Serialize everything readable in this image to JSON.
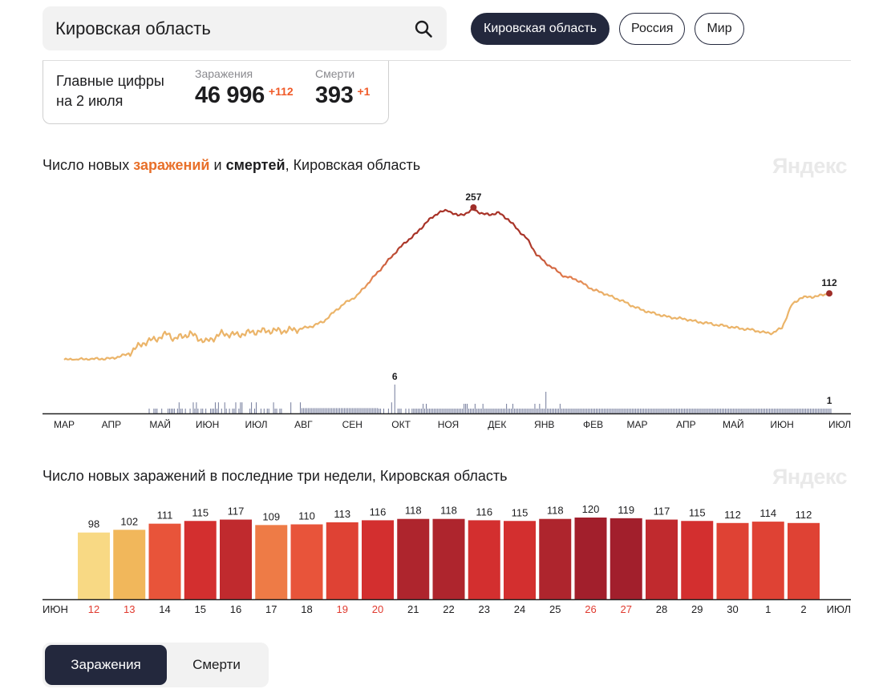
{
  "search": {
    "value": "Кировская область"
  },
  "regions": [
    {
      "label": "Кировская область",
      "active": true
    },
    {
      "label": "Россия",
      "active": false
    },
    {
      "label": "Мир",
      "active": false
    }
  ],
  "summary": {
    "title_line1": "Главные цифры",
    "title_line2": "на 2 июля",
    "infections": {
      "label": "Заражения",
      "value": "46 996",
      "delta": "+112"
    },
    "deaths": {
      "label": "Смерти",
      "value": "393",
      "delta": "+1"
    }
  },
  "chart1_title": {
    "prefix": "Число новых ",
    "infections_word": "заражений",
    "middle": " и ",
    "deaths_word": "смертей",
    "suffix": ", Кировская область"
  },
  "chart2_title": "Число новых заражений в последние три недели, Кировская область",
  "watermark": "Яндекс",
  "tabs": [
    {
      "label": "Заражения",
      "active": true
    },
    {
      "label": "Смерти",
      "active": false
    }
  ],
  "colors": {
    "accent_dark": "#23283d",
    "orange": "#e8702a",
    "line_low": "#ebb469",
    "line_mid": "#e0784b",
    "line_high": "#a83328",
    "marker": "#9f2e29",
    "death_bars": "#737b9b",
    "holiday_red": "#e03a2f"
  },
  "chart_data": [
    {
      "type": "line",
      "title": "Число новых заражений и смертей, Кировская область",
      "x_labels": [
        "МАР",
        "АПР",
        "МАЙ",
        "ИЮН",
        "ИЮЛ",
        "АВГ",
        "СЕН",
        "ОКТ",
        "НОЯ",
        "ДЕК",
        "ЯНВ",
        "ФЕВ",
        "МАР",
        "АПР",
        "МАЙ",
        "ИЮН",
        "ИЮЛ"
      ],
      "x_range_days": [
        0,
        487
      ],
      "series": [
        {
          "name": "Заражения",
          "points": [
            [
              0,
              0
            ],
            [
              30,
              2
            ],
            [
              40,
              9
            ],
            [
              50,
              28
            ],
            [
              60,
              37
            ],
            [
              66,
              44
            ],
            [
              70,
              35
            ],
            [
              80,
              44
            ],
            [
              90,
              30
            ],
            [
              100,
              44
            ],
            [
              110,
              42
            ],
            [
              120,
              47
            ],
            [
              130,
              49
            ],
            [
              140,
              49
            ],
            [
              150,
              52
            ],
            [
              158,
              57
            ],
            [
              165,
              65
            ],
            [
              172,
              82
            ],
            [
              178,
              95
            ],
            [
              186,
              108
            ],
            [
              192,
              126
            ],
            [
              198,
              144
            ],
            [
              205,
              165
            ],
            [
              212,
              186
            ],
            [
              218,
              201
            ],
            [
              224,
              214
            ],
            [
              230,
              232
            ],
            [
              238,
              249
            ],
            [
              244,
              252
            ],
            [
              250,
              243
            ],
            [
              256,
              248
            ],
            [
              260,
              254
            ],
            [
              266,
              246
            ],
            [
              270,
              245
            ],
            [
              276,
              248
            ],
            [
              282,
              237
            ],
            [
              288,
              220
            ],
            [
              294,
              204
            ],
            [
              300,
              178
            ],
            [
              306,
              163
            ],
            [
              312,
              152
            ],
            [
              318,
              140
            ],
            [
              324,
              137
            ],
            [
              330,
              128
            ],
            [
              336,
              118
            ],
            [
              342,
              113
            ],
            [
              348,
              106
            ],
            [
              354,
              100
            ],
            [
              360,
              92
            ],
            [
              366,
              85
            ],
            [
              372,
              80
            ],
            [
              378,
              76
            ],
            [
              384,
              72
            ],
            [
              390,
              70
            ],
            [
              396,
              68
            ],
            [
              402,
              64
            ],
            [
              408,
              62
            ],
            [
              414,
              59
            ],
            [
              420,
              57
            ],
            [
              426,
              54
            ],
            [
              432,
              52
            ],
            [
              438,
              50
            ],
            [
              444,
              46
            ],
            [
              450,
              45
            ],
            [
              456,
              54
            ],
            [
              462,
              92
            ],
            [
              468,
              105
            ],
            [
              474,
              106
            ],
            [
              480,
              108
            ],
            [
              486,
              112
            ]
          ],
          "labels": [
            {
              "day": 260,
              "value": 257
            },
            {
              "day": 486,
              "value": 112
            }
          ]
        },
        {
          "name": "Смерти",
          "y_max": 6,
          "labels": [
            {
              "day": 210,
              "value": 6
            },
            {
              "day": 486,
              "value": 1
            }
          ]
        }
      ]
    },
    {
      "type": "bar",
      "title": "Число новых заражений в последние три недели, Кировская область",
      "start_label": "ИЮН",
      "end_label": "ИЮЛ",
      "categories": [
        "12",
        "13",
        "14",
        "15",
        "16",
        "17",
        "18",
        "19",
        "20",
        "21",
        "22",
        "23",
        "24",
        "25",
        "26",
        "27",
        "28",
        "29",
        "30",
        "1",
        "2"
      ],
      "values": [
        98,
        102,
        111,
        115,
        117,
        109,
        110,
        113,
        116,
        118,
        118,
        116,
        115,
        118,
        120,
        119,
        117,
        115,
        112,
        114,
        112
      ],
      "red_labels": [
        "12",
        "13",
        "19",
        "20",
        "26",
        "27"
      ],
      "ylim": [
        0,
        120
      ]
    }
  ]
}
